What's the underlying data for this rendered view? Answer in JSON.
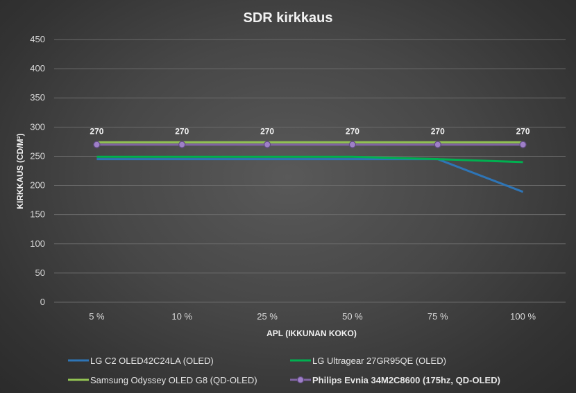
{
  "chart_data": {
    "type": "line",
    "title": "SDR kirkkaus",
    "xlabel": "APL (IKKUNAN KOKO)",
    "ylabel": "KIRKKAUS (CD/M²)",
    "ylim": [
      0,
      450
    ],
    "yticks": [
      0,
      50,
      100,
      150,
      200,
      250,
      300,
      350,
      400,
      450
    ],
    "grid": true,
    "legend_position": "bottom",
    "categories": [
      "5 %",
      "10 %",
      "25 %",
      "50 %",
      "75 %",
      "100 %"
    ],
    "series": [
      {
        "name": "LG C2 OLED42C24LA (OLED)",
        "values": [
          245,
          245,
          245,
          245,
          245,
          189
        ],
        "color": "#2e75b6",
        "markers": false
      },
      {
        "name": "LG Ultragear 27GR95QE (OLED)",
        "values": [
          249,
          249,
          249,
          249,
          245,
          240
        ],
        "color": "#00b050",
        "markers": false
      },
      {
        "name": "Samsung Odyssey OLED G8 (QD-OLED)",
        "values": [
          274,
          274,
          274,
          274,
          274,
          274
        ],
        "color": "#92c353",
        "markers": false
      },
      {
        "name": "Philips Evnia 34M2C8600 (175hz, QD-OLED)",
        "values": [
          270,
          270,
          270,
          270,
          270,
          270
        ],
        "color": "#8064a2",
        "markers": true,
        "data_labels": true,
        "legend_text_color": "#00b050"
      }
    ]
  }
}
